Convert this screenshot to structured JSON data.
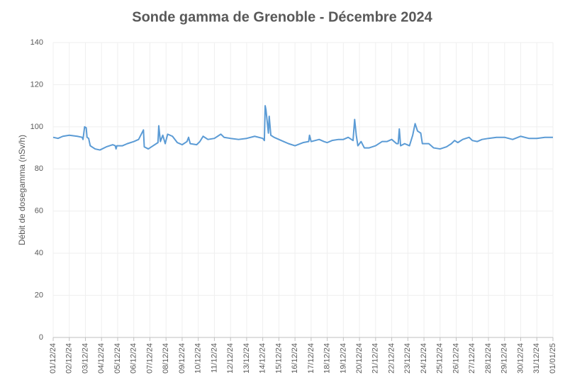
{
  "chart_data": {
    "type": "line",
    "title": "Sonde gamma de Grenoble - Décembre 2024",
    "y_label": "Débit de dosegamma (nSv/h)",
    "x": [
      0,
      0.3,
      0.6,
      1,
      1.5,
      1.8,
      1.85,
      1.95,
      2.05,
      2.1,
      2.2,
      2.3,
      2.6,
      2.9,
      3.3,
      3.7,
      3.85,
      3.9,
      3.95,
      4.3,
      4.6,
      5,
      5.3,
      5.5,
      5.6,
      5.65,
      5.9,
      6.2,
      6.5,
      6.55,
      6.65,
      6.8,
      6.95,
      7.1,
      7.4,
      7.7,
      8,
      8.3,
      8.4,
      8.5,
      8.9,
      9.1,
      9.3,
      9.6,
      10,
      10.4,
      10.6,
      11,
      11.5,
      12,
      12.5,
      13,
      13.1,
      13.15,
      13.2,
      13.35,
      13.4,
      13.5,
      13.7,
      14,
      14.3,
      14.6,
      15,
      15.5,
      15.85,
      15.9,
      16,
      16.5,
      16.8,
      17,
      17.3,
      17.7,
      18,
      18.3,
      18.6,
      18.7,
      18.8,
      18.9,
      19.1,
      19.3,
      19.6,
      20,
      20.4,
      20.7,
      21,
      21.3,
      21.4,
      21.47,
      21.55,
      21.8,
      22.1,
      22.3,
      22.45,
      22.6,
      22.8,
      22.9,
      23.3,
      23.6,
      24,
      24.4,
      24.7,
      24.9,
      25.1,
      25.4,
      25.8,
      26,
      26.3,
      26.6,
      27,
      27.5,
      28,
      28.5,
      29,
      29.5,
      30,
      30.5,
      31
    ],
    "series": [
      {
        "name": "Débit de dose gamma",
        "color": "#5b9bd5",
        "values": [
          95,
          94.5,
          95.5,
          96,
          95.5,
          95,
          94,
          100,
          99.5,
          95,
          94.5,
          91,
          89.5,
          89,
          90.5,
          91.5,
          91,
          89.5,
          91,
          91,
          92,
          93,
          94,
          97,
          98.5,
          90.5,
          89.5,
          91,
          92.5,
          100.5,
          93,
          96,
          92,
          96.5,
          95.5,
          92.5,
          91.5,
          93,
          95,
          92,
          91.5,
          93,
          95.5,
          94,
          94.5,
          96.5,
          95,
          94.5,
          94,
          94.5,
          95.5,
          94.5,
          93.5,
          110,
          108,
          97,
          105,
          96,
          95,
          94,
          93,
          92,
          91,
          92.5,
          93,
          96,
          93,
          94,
          93,
          92.5,
          93.5,
          94,
          94,
          95,
          93.5,
          103.5,
          96,
          91,
          93,
          90,
          90,
          91,
          93,
          93,
          94,
          92,
          92,
          99,
          91,
          92,
          91,
          96,
          101.5,
          98,
          97,
          92,
          92,
          90,
          89.5,
          90.5,
          92,
          93.5,
          92.5,
          94,
          95,
          93.5,
          93,
          94,
          94.5,
          95,
          95,
          94,
          95.5,
          94.5,
          94.5,
          95,
          95
        ]
      }
    ],
    "xlim": [
      0,
      31
    ],
    "xticks": [
      {
        "value": 0,
        "label": "01/12/24"
      },
      {
        "value": 1,
        "label": "02/12/24"
      },
      {
        "value": 2,
        "label": "03/12/24"
      },
      {
        "value": 3,
        "label": "04/12/24"
      },
      {
        "value": 4,
        "label": "05/12/24"
      },
      {
        "value": 5,
        "label": "06/12/24"
      },
      {
        "value": 6,
        "label": "07/12/24"
      },
      {
        "value": 7,
        "label": "08/12/24"
      },
      {
        "value": 8,
        "label": "09/12/24"
      },
      {
        "value": 9,
        "label": "10/12/24"
      },
      {
        "value": 10,
        "label": "11/12/24"
      },
      {
        "value": 11,
        "label": "12/12/24"
      },
      {
        "value": 12,
        "label": "13/12/24"
      },
      {
        "value": 13,
        "label": "14/12/24"
      },
      {
        "value": 14,
        "label": "15/12/24"
      },
      {
        "value": 15,
        "label": "16/12/24"
      },
      {
        "value": 16,
        "label": "17/12/24"
      },
      {
        "value": 17,
        "label": "18/12/24"
      },
      {
        "value": 18,
        "label": "19/12/24"
      },
      {
        "value": 19,
        "label": "20/12/24"
      },
      {
        "value": 20,
        "label": "21/12/24"
      },
      {
        "value": 21,
        "label": "22/12/24"
      },
      {
        "value": 22,
        "label": "23/12/24"
      },
      {
        "value": 23,
        "label": "24/12/24"
      },
      {
        "value": 24,
        "label": "25/12/24"
      },
      {
        "value": 25,
        "label": "26/12/24"
      },
      {
        "value": 26,
        "label": "27/12/24"
      },
      {
        "value": 27,
        "label": "28/12/24"
      },
      {
        "value": 28,
        "label": "29/12/24"
      },
      {
        "value": 29,
        "label": "30/12/24"
      },
      {
        "value": 30,
        "label": "31/12/24"
      },
      {
        "value": 31,
        "label": "01/01/25"
      }
    ],
    "ylim": [
      0,
      140
    ],
    "yticks": [
      0,
      20,
      40,
      60,
      80,
      100,
      120,
      140
    ],
    "grid": true
  }
}
